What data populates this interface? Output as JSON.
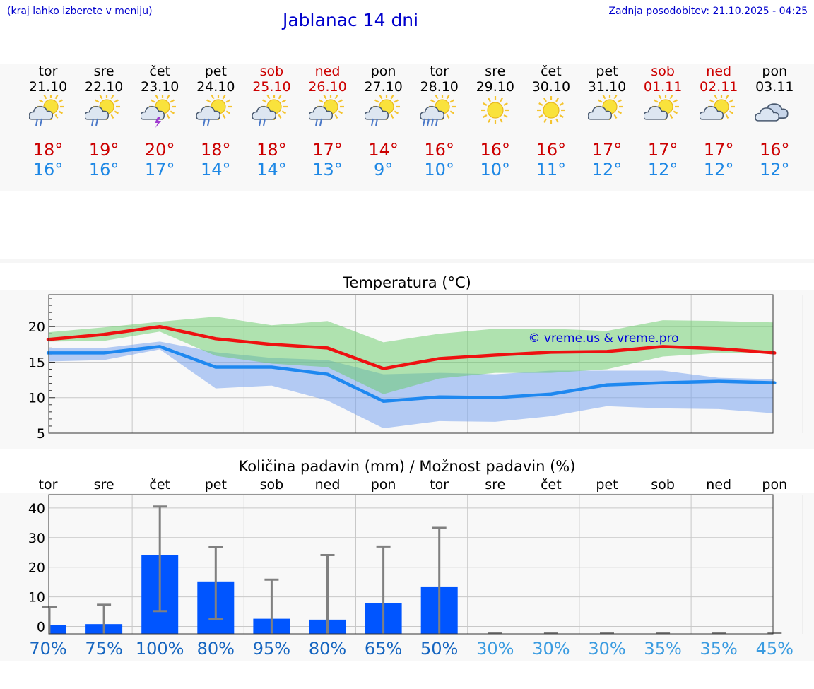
{
  "header": {
    "menu_hint": "(kraj lahko izberete v meniju)",
    "title": "Jablanac 14 dni",
    "updated": "Zadnja posodobitev: 21.10.2025 - 04:25"
  },
  "colors": {
    "max_temp": "#cc0000",
    "min_temp": "#1e88e5",
    "weekend": "#cc0000",
    "bar": "#0055ff"
  },
  "days": [
    {
      "name": "tor",
      "date": "21.10",
      "weekend": false,
      "icon": "sun-cloud-rain-icon",
      "max": "18°",
      "min": "16°"
    },
    {
      "name": "sre",
      "date": "22.10",
      "weekend": false,
      "icon": "sun-cloud-rain-icon",
      "max": "19°",
      "min": "16°"
    },
    {
      "name": "čet",
      "date": "23.10",
      "weekend": false,
      "icon": "sun-cloud-lightning-icon",
      "max": "20°",
      "min": "17°"
    },
    {
      "name": "pet",
      "date": "24.10",
      "weekend": false,
      "icon": "sun-cloud-rain-icon",
      "max": "18°",
      "min": "14°"
    },
    {
      "name": "sob",
      "date": "25.10",
      "weekend": true,
      "icon": "sun-cloud-rain-icon",
      "max": "18°",
      "min": "14°"
    },
    {
      "name": "ned",
      "date": "26.10",
      "weekend": true,
      "icon": "sun-cloud-rain-icon",
      "max": "17°",
      "min": "13°"
    },
    {
      "name": "pon",
      "date": "27.10",
      "weekend": false,
      "icon": "sun-cloud-rain-icon",
      "max": "14°",
      "min": "9°"
    },
    {
      "name": "tor",
      "date": "28.10",
      "weekend": false,
      "icon": "sun-cloud-heavy-rain-icon",
      "max": "16°",
      "min": "10°"
    },
    {
      "name": "sre",
      "date": "29.10",
      "weekend": false,
      "icon": "sun-icon",
      "max": "16°",
      "min": "10°"
    },
    {
      "name": "čet",
      "date": "30.10",
      "weekend": false,
      "icon": "sun-icon",
      "max": "16°",
      "min": "11°"
    },
    {
      "name": "pet",
      "date": "31.10",
      "weekend": false,
      "icon": "sun-cloud-icon",
      "max": "17°",
      "min": "12°"
    },
    {
      "name": "sob",
      "date": "01.11",
      "weekend": true,
      "icon": "sun-cloud-icon",
      "max": "17°",
      "min": "12°"
    },
    {
      "name": "ned",
      "date": "02.11",
      "weekend": true,
      "icon": "sun-cloud-icon",
      "max": "17°",
      "min": "12°"
    },
    {
      "name": "pon",
      "date": "03.11",
      "weekend": false,
      "icon": "cloud-icon",
      "max": "16°",
      "min": "12°"
    }
  ],
  "chart_data": [
    {
      "type": "line",
      "title": "Temperatura (°C)",
      "watermark": "© vreme.us & vreme.pro",
      "categories": [
        "tor",
        "sre",
        "čet",
        "pet",
        "sob",
        "ned",
        "pon",
        "tor",
        "sre",
        "čet",
        "pet",
        "sob",
        "ned",
        "pon"
      ],
      "yticks": [
        5,
        10,
        15,
        20
      ],
      "ylim": [
        5,
        24.5
      ],
      "series": [
        {
          "values": [
            18.2,
            18.9,
            20.0,
            18.3,
            17.5,
            17.0,
            14.1,
            15.5,
            16.0,
            16.4,
            16.5,
            17.2,
            16.9,
            16.3
          ]
        },
        {
          "values": [
            16.3,
            16.3,
            17.2,
            14.3,
            14.3,
            13.3,
            9.5,
            10.1,
            10.0,
            10.5,
            11.8,
            12.1,
            12.3,
            12.1
          ]
        }
      ],
      "max_band_upper": [
        19.2,
        19.9,
        20.7,
        21.4,
        20.2,
        20.8,
        17.8,
        19.0,
        19.7,
        19.7,
        19.4,
        20.9,
        20.8,
        20.6
      ],
      "max_band_lower": [
        17.9,
        18.0,
        19.3,
        15.9,
        14.8,
        14.3,
        10.5,
        12.7,
        13.5,
        13.5,
        14.0,
        15.8,
        16.3,
        16.4
      ],
      "min_band_upper": [
        17.0,
        17.0,
        17.9,
        16.4,
        15.6,
        15.3,
        13.3,
        13.5,
        13.3,
        13.8,
        13.8,
        13.8,
        12.8,
        12.6
      ],
      "min_band_lower": [
        15.1,
        15.3,
        16.8,
        11.3,
        11.7,
        9.6,
        5.7,
        6.7,
        6.6,
        7.4,
        8.8,
        8.5,
        8.4,
        7.8
      ],
      "grid": true
    },
    {
      "type": "bar",
      "title": "Količina padavin (mm) / Možnost padavin (%)",
      "categories": [
        "tor",
        "sre",
        "čet",
        "pet",
        "sob",
        "ned",
        "pon",
        "tor",
        "sre",
        "čet",
        "pet",
        "sob",
        "ned",
        "pon"
      ],
      "values": [
        0.5,
        0.8,
        24,
        15.2,
        2.6,
        2.3,
        7.8,
        13.5,
        0,
        0,
        0,
        0,
        0,
        0
      ],
      "error_low": [
        0,
        0,
        5.2,
        2.5,
        0,
        0,
        0,
        0,
        0,
        0,
        0,
        0,
        0,
        0
      ],
      "error_high": [
        6.5,
        7.3,
        40.5,
        26.8,
        15.8,
        24.1,
        27,
        33.3,
        0,
        0,
        0,
        0,
        0,
        0
      ],
      "yticks": [
        0,
        10,
        20,
        30,
        40
      ],
      "ylim": [
        -2.5,
        44.5
      ],
      "probability": [
        "70%",
        "75%",
        "100%",
        "80%",
        "95%",
        "80%",
        "65%",
        "50%",
        "30%",
        "30%",
        "30%",
        "35%",
        "35%",
        "45%"
      ],
      "grid": true
    }
  ]
}
